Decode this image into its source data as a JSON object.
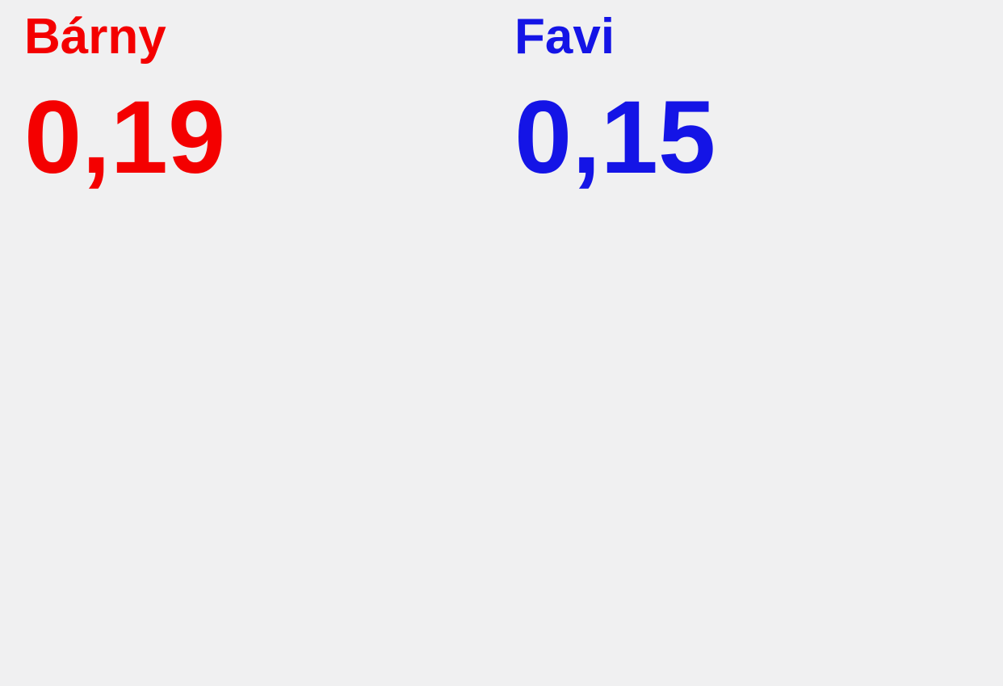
{
  "canvas": {
    "background_color": "#f0f0f1"
  },
  "stats": [
    {
      "id": "barny",
      "label": "Bárny",
      "value": "0,19",
      "color": "#f40000"
    },
    {
      "id": "favi",
      "label": "Favi",
      "value": "0,15",
      "color": "#1414e6"
    }
  ]
}
